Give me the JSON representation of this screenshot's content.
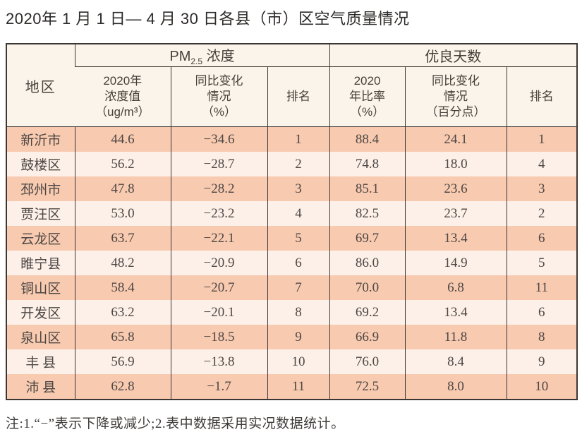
{
  "title": "2020年 1 月 1 日— 4 月 30 日各县（市）区空气质量情况",
  "note": "注:1.“−”表示下降或减少;2.表中数据采用实况数据统计。",
  "colors": {
    "row_odd": "#f8cab0",
    "row_even": "#fdf0e9",
    "header_bg": "#fbf4ea",
    "border": "#3c3735",
    "text": "#4d4744"
  },
  "table": {
    "corner_header": "地区",
    "group1": {
      "base": "PM",
      "sub": "2.5",
      "rest": " 浓度"
    },
    "group2": "优良天数",
    "subheaders": {
      "pm_value": "2020年\n浓度值\n（ug/m³）",
      "pm_change": "同比变化\n情况\n（%）",
      "pm_rank": "排名",
      "good_ratio": "2020\n年比率\n（%）",
      "good_change": "同比变化\n情况\n（百分点）",
      "good_rank": "排名"
    }
  },
  "chart_data": {
    "type": "table",
    "title": "2020年 1 月 1 日— 4 月 30 日各县（市）区空气质量情况",
    "columns": [
      "地区",
      "PM2.5浓度 2020年浓度值（ug/m³）",
      "PM2.5浓度 同比变化情况（%）",
      "PM2.5浓度 排名",
      "优良天数 2020年比率（%）",
      "优良天数 同比变化情况（百分点）",
      "优良天数 排名"
    ],
    "rows": [
      [
        "新沂市",
        "44.6",
        "−34.6",
        "1",
        "88.4",
        "24.1",
        "1"
      ],
      [
        "鼓楼区",
        "56.2",
        "−28.7",
        "2",
        "74.8",
        "18.0",
        "4"
      ],
      [
        "邳州市",
        "47.8",
        "−28.2",
        "3",
        "85.1",
        "23.6",
        "3"
      ],
      [
        "贾汪区",
        "53.0",
        "−23.2",
        "4",
        "82.5",
        "23.7",
        "2"
      ],
      [
        "云龙区",
        "63.7",
        "−22.1",
        "5",
        "69.7",
        "13.4",
        "6"
      ],
      [
        "睢宁县",
        "48.2",
        "−20.9",
        "6",
        "86.0",
        "14.9",
        "5"
      ],
      [
        "铜山区",
        "58.4",
        "−20.7",
        "7",
        "70.0",
        "6.8",
        "11"
      ],
      [
        "开发区",
        "63.2",
        "−20.1",
        "8",
        "69.2",
        "13.4",
        "6"
      ],
      [
        "泉山区",
        "65.8",
        "−18.5",
        "9",
        "66.9",
        "11.8",
        "8"
      ],
      [
        "丰 县",
        "56.9",
        "−13.8",
        "10",
        "76.0",
        "8.4",
        "9"
      ],
      [
        "沛 县",
        "62.8",
        "−1.7",
        "11",
        "72.5",
        "8.0",
        "10"
      ]
    ]
  }
}
